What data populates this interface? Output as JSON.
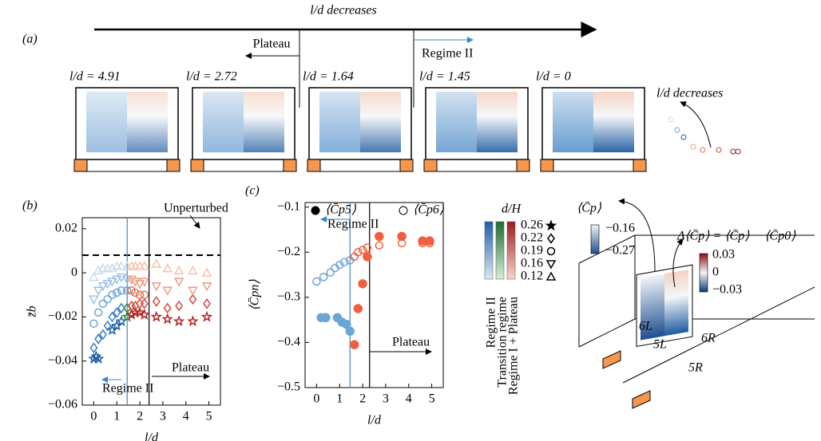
{
  "panel_a": {
    "label": "(a)",
    "arrow_label": "l/d decreases",
    "plateau": "Plateau",
    "regime_ii": "Regime II",
    "cases": [
      {
        "label": "l/d = 4.91",
        "color": "#8b1a1a"
      },
      {
        "label": "l/d = 2.72",
        "color": "#f08a6a"
      },
      {
        "label": "l/d = 1.64",
        "color": "#e8664c"
      },
      {
        "label": "l/d = 1.45",
        "color": "#3a87c8"
      },
      {
        "label": "l/d = 0",
        "color": "#3a87c8"
      }
    ],
    "trend_label": "l/d decreases"
  },
  "chart_data": [
    {
      "type": "scatter",
      "panel_label": "(b)",
      "xlabel": "l/d",
      "ylabel": "z̄b",
      "xlim": [
        -0.5,
        5.5
      ],
      "ylim": [
        -0.06,
        0.025
      ],
      "xticks": [
        0,
        1,
        2,
        3,
        4,
        5
      ],
      "yticks": [
        {
          "value": -0.06,
          "label": "−0.06"
        },
        {
          "value": -0.04,
          "label": "−0.04"
        },
        {
          "value": -0.02,
          "label": "−0.02"
        },
        0,
        0.02
      ],
      "hline": {
        "y": 0.008
      },
      "vlines": [
        {
          "x": 1.45,
          "color": "#3a87c8"
        },
        {
          "x": 2.4,
          "color": "#000000"
        }
      ],
      "annotations": [
        {
          "text": "Unperturbed",
          "color": "#000000"
        },
        {
          "text": "Regime II",
          "color": "#3a87c8"
        },
        {
          "text": "Plateau",
          "color": "#000000"
        }
      ],
      "series": [
        {
          "name": "0.26",
          "marker": "star",
          "x": [
            0,
            0.1,
            0.2,
            0.8,
            1.0,
            1.2,
            1.45,
            1.64,
            1.8,
            2.0,
            2.2,
            2.72,
            3.2,
            3.7,
            4.3,
            4.91
          ],
          "y": [
            -0.039,
            -0.038,
            -0.039,
            -0.026,
            -0.024,
            -0.022,
            -0.02,
            -0.019,
            -0.018,
            -0.018,
            -0.019,
            -0.02,
            -0.021,
            -0.022,
            -0.022,
            -0.02
          ],
          "colors": [
            "#1f5fa8",
            "#1f5fa8",
            "#1f5fa8",
            "#1f5fa8",
            "#1f5fa8",
            "#1f5fa8",
            "#2e8b3a",
            "#b22222",
            "#b22222",
            "#b22222",
            "#b22222",
            "#b22222",
            "#b22222",
            "#b22222",
            "#b22222",
            "#b22222"
          ]
        },
        {
          "name": "0.22",
          "marker": "diamond",
          "x": [
            0,
            0.2,
            0.4,
            0.6,
            0.8,
            1.0,
            1.2,
            1.45,
            1.64,
            1.8,
            2.0,
            2.2,
            2.72,
            3.2,
            3.7,
            4.3,
            4.91
          ],
          "y": [
            -0.034,
            -0.03,
            -0.028,
            -0.024,
            -0.02,
            -0.018,
            -0.016,
            -0.016,
            -0.015,
            -0.015,
            -0.014,
            -0.014,
            -0.013,
            -0.016,
            -0.015,
            -0.012,
            -0.014
          ],
          "colors": [
            "#3a7cc0",
            "#3a7cc0",
            "#3a7cc0",
            "#3a7cc0",
            "#3a7cc0",
            "#3a7cc0",
            "#3a7cc0",
            "#2e8b3a",
            "#d6473b",
            "#d6473b",
            "#d6473b",
            "#d6473b",
            "#d6473b",
            "#d6473b",
            "#d6473b",
            "#d6473b",
            "#d6473b"
          ]
        },
        {
          "name": "0.19",
          "marker": "circle",
          "x": [
            0,
            0.2,
            0.4,
            0.6,
            0.8,
            1.0,
            1.2,
            1.45,
            1.64,
            1.8,
            2.0,
            2.2
          ],
          "y": [
            -0.023,
            -0.018,
            -0.014,
            -0.012,
            -0.01,
            -0.009,
            -0.008,
            -0.008,
            -0.008,
            -0.009,
            -0.01,
            -0.01
          ],
          "colors": [
            "#6aa6d8",
            "#6aa6d8",
            "#6aa6d8",
            "#6aa6d8",
            "#6aa6d8",
            "#6aa6d8",
            "#6aa6d8",
            "#6aa6d8",
            "#e9705a",
            "#e9705a",
            "#e9705a",
            "#e9705a"
          ]
        },
        {
          "name": "0.16",
          "marker": "tri-down",
          "x": [
            0,
            0.2,
            0.4,
            0.6,
            0.8,
            1.0,
            1.2,
            1.45,
            1.64,
            1.8,
            2.0,
            2.2,
            2.72,
            3.2,
            3.7,
            4.3,
            4.91
          ],
          "y": [
            -0.012,
            -0.008,
            -0.006,
            -0.005,
            -0.004,
            -0.003,
            -0.002,
            -0.003,
            -0.003,
            -0.004,
            -0.005,
            -0.004,
            -0.006,
            -0.008,
            -0.004,
            -0.008,
            -0.006
          ],
          "colors": [
            "#9cc3e6",
            "#9cc3e6",
            "#9cc3e6",
            "#9cc3e6",
            "#9cc3e6",
            "#9cc3e6",
            "#9cc3e6",
            "#9cc3e6",
            "#f19a80",
            "#f19a80",
            "#f19a80",
            "#f19a80",
            "#f19a80",
            "#f19a80",
            "#f19a80",
            "#f19a80",
            "#f19a80"
          ]
        },
        {
          "name": "0.12",
          "marker": "tri-up",
          "x": [
            0,
            0.2,
            0.4,
            0.6,
            0.8,
            1.0,
            1.2,
            1.45,
            1.64,
            1.8,
            2.0,
            2.2,
            2.72,
            3.2,
            3.7,
            4.3,
            4.91
          ],
          "y": [
            -0.002,
            0.001,
            0.002,
            0.002,
            0.002,
            0.003,
            0.003,
            0.003,
            0.003,
            0.003,
            0.003,
            0.003,
            0.004,
            0.002,
            0.001,
            0.001,
            0
          ],
          "colors": [
            "#c8dcef",
            "#c8dcef",
            "#c8dcef",
            "#c8dcef",
            "#c8dcef",
            "#c8dcef",
            "#c8dcef",
            "#c8dcef",
            "#f7c1ad",
            "#f7c1ad",
            "#f7c1ad",
            "#f7c1ad",
            "#f7c1ad",
            "#f7c1ad",
            "#f7c1ad",
            "#f7c1ad",
            "#f7c1ad"
          ]
        }
      ]
    },
    {
      "type": "scatter",
      "panel_label": "(c)",
      "xlabel": "l/d",
      "ylabel": "⟨C̄pn⟩",
      "xlim": [
        -0.5,
        5.5
      ],
      "ylim": [
        -0.5,
        -0.09
      ],
      "xticks": [
        0,
        1,
        2,
        3,
        4,
        5
      ],
      "yticks": [
        {
          "value": -0.5,
          "label": "−0.5"
        },
        {
          "value": -0.4,
          "label": "−0.4"
        },
        {
          "value": -0.3,
          "label": "−0.3"
        },
        {
          "value": -0.2,
          "label": "−0.2"
        },
        {
          "value": -0.1,
          "label": "−0.1"
        }
      ],
      "vlines": [
        {
          "x": 1.45,
          "color": "#3a87c8"
        },
        {
          "x": 2.3,
          "color": "#000000"
        }
      ],
      "annotations": [
        {
          "text": "Regime II",
          "color": "#3a87c8"
        },
        {
          "text": "Plateau",
          "color": "#000000"
        }
      ],
      "series": [
        {
          "name": "⟨C̄p5⟩",
          "marker": "circle",
          "filled": true,
          "x": [
            0.2,
            0.4,
            0.9,
            1.1,
            1.3,
            1.45,
            1.64,
            1.8,
            2.0,
            2.2,
            2.72,
            3.7,
            4.6,
            4.91
          ],
          "y": [
            -0.345,
            -0.345,
            -0.345,
            -0.355,
            -0.36,
            -0.375,
            -0.405,
            -0.325,
            -0.27,
            -0.21,
            -0.165,
            -0.165,
            -0.175,
            -0.175
          ],
          "colors": [
            "#6aa6d8",
            "#6aa6d8",
            "#6aa6d8",
            "#6aa6d8",
            "#6aa6d8",
            "#6aa6d8",
            "#f0603f",
            "#f0603f",
            "#f0603f",
            "#f0603f",
            "#f0603f",
            "#f0603f",
            "#f0603f",
            "#f0603f"
          ]
        },
        {
          "name": "⟨C̄p6⟩",
          "marker": "circle",
          "filled": false,
          "x": [
            0,
            0.3,
            0.6,
            0.8,
            1.0,
            1.2,
            1.45,
            1.64,
            1.8,
            2.0,
            2.2,
            2.72,
            3.7,
            4.6,
            4.91
          ],
          "y": [
            -0.265,
            -0.255,
            -0.245,
            -0.235,
            -0.228,
            -0.222,
            -0.218,
            -0.21,
            -0.2,
            -0.195,
            -0.19,
            -0.185,
            -0.18,
            -0.18,
            -0.18
          ],
          "colors": [
            "#6aa6d8",
            "#6aa6d8",
            "#6aa6d8",
            "#6aa6d8",
            "#6aa6d8",
            "#6aa6d8",
            "#6aa6d8",
            "#f0603f",
            "#f0603f",
            "#f0603f",
            "#f0603f",
            "#f0603f",
            "#f0603f",
            "#f0603f",
            "#f0603f"
          ]
        }
      ]
    }
  ],
  "legend": {
    "title": "d/H",
    "regimes": [
      {
        "text": "Regime II",
        "color": "#3a87c8"
      },
      {
        "text": "Transition regime",
        "color": "#2e8b3a"
      },
      {
        "text": "Regime I + Plateau",
        "color": "#d6473b"
      }
    ]
  },
  "sketch": {
    "cp_label": "⟨C̄p⟩",
    "cp_ticks": [
      "−0.16",
      "−0.27"
    ],
    "delta_label": "Δ⟨C̄p⟩ = ⟨C̄p⟩ − ⟨C̄p0⟩",
    "delta_ticks": [
      "0.03",
      "0",
      "−0.03"
    ],
    "taps": [
      "6L",
      "5L",
      "6R",
      "5R"
    ]
  }
}
